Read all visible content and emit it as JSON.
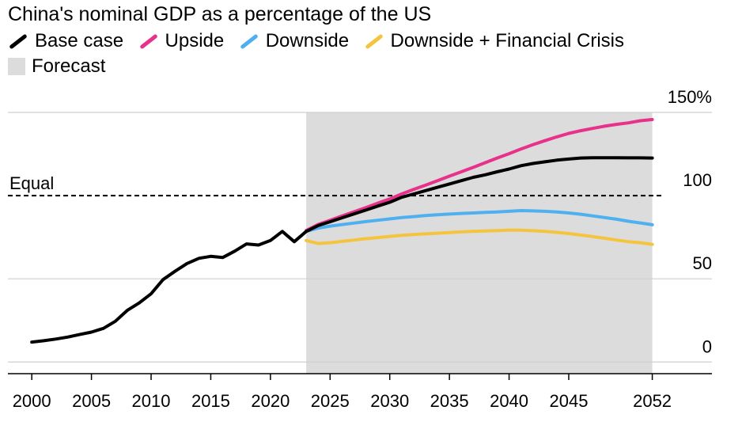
{
  "chart_data": {
    "type": "line",
    "title": "China's nominal GDP as a percentage of the US",
    "xlabel": "",
    "ylabel": "",
    "xlim": [
      1998,
      2057
    ],
    "ylim": [
      -7,
      150
    ],
    "x_ticks": [
      {
        "value": 2000,
        "label": "2000"
      },
      {
        "value": 2005,
        "label": "2005"
      },
      {
        "value": 2010,
        "label": "2010"
      },
      {
        "value": 2015,
        "label": "2015"
      },
      {
        "value": 2020,
        "label": "2020"
      },
      {
        "value": 2025,
        "label": "2025"
      },
      {
        "value": 2030,
        "label": "2030"
      },
      {
        "value": 2035,
        "label": "2035"
      },
      {
        "value": 2040,
        "label": "2040"
      },
      {
        "value": 2045,
        "label": "2045"
      },
      {
        "value": 2052,
        "label": "2052"
      }
    ],
    "y_ticks": [
      {
        "value": 150,
        "label": "150%"
      },
      {
        "value": 100,
        "label": "100"
      },
      {
        "value": 50,
        "label": "50"
      },
      {
        "value": 0,
        "label": "0"
      }
    ],
    "grid": true,
    "legend_position": "top-left",
    "forecast": {
      "label": "Forecast",
      "from": 2023,
      "to": 2052,
      "color": "#dcdcdc"
    },
    "reference_line": {
      "value": 100,
      "label": "Equal",
      "style": "dashed"
    },
    "series": [
      {
        "name": "Base case",
        "color": "#000000",
        "x": [
          2000,
          2001,
          2002,
          2003,
          2004,
          2005,
          2006,
          2007,
          2008,
          2009,
          2010,
          2011,
          2012,
          2013,
          2014,
          2015,
          2016,
          2017,
          2018,
          2019,
          2020,
          2021,
          2022,
          2023,
          2024,
          2025,
          2026,
          2027,
          2028,
          2029,
          2030,
          2031,
          2032,
          2033,
          2034,
          2035,
          2036,
          2037,
          2038,
          2039,
          2040,
          2041,
          2042,
          2043,
          2044,
          2045,
          2046,
          2047,
          2048,
          2049,
          2050,
          2051,
          2052
        ],
        "y": [
          12,
          12.8,
          13.8,
          15,
          16.5,
          18,
          20.2,
          24.5,
          31,
          35.5,
          41,
          49.5,
          54.5,
          59.2,
          62.3,
          63.5,
          62.8,
          66.6,
          71,
          70.3,
          73,
          78.5,
          72.3,
          78.5,
          82,
          84.3,
          86.7,
          89,
          91.3,
          93.7,
          96,
          99,
          101,
          103,
          105,
          107,
          109,
          111,
          112.5,
          114.3,
          116,
          118,
          119.3,
          120.3,
          121.3,
          122,
          122.6,
          122.8,
          122.8,
          122.8,
          122.7,
          122.7,
          122.6
        ]
      },
      {
        "name": "Upside",
        "color": "#e8318a",
        "x": [
          2023,
          2024,
          2025,
          2026,
          2027,
          2028,
          2029,
          2030,
          2031,
          2032,
          2033,
          2034,
          2035,
          2036,
          2037,
          2038,
          2039,
          2040,
          2041,
          2042,
          2043,
          2044,
          2045,
          2046,
          2047,
          2048,
          2049,
          2050,
          2051,
          2052
        ],
        "y": [
          79,
          82.7,
          85.2,
          87.8,
          90.3,
          92.8,
          95.5,
          98,
          101,
          103.7,
          106.3,
          109,
          111.7,
          114.3,
          117,
          119.8,
          122.6,
          125.2,
          128,
          130.6,
          133,
          135.3,
          137.4,
          139,
          140.4,
          141.7,
          142.8,
          143.7,
          145,
          145.7
        ]
      },
      {
        "name": "Downside",
        "color": "#4fb0f0",
        "x": [
          2023,
          2024,
          2025,
          2026,
          2027,
          2028,
          2029,
          2030,
          2031,
          2032,
          2033,
          2034,
          2035,
          2036,
          2037,
          2038,
          2039,
          2040,
          2041,
          2042,
          2043,
          2044,
          2045,
          2046,
          2047,
          2048,
          2049,
          2050,
          2051,
          2052
        ],
        "y": [
          78.5,
          80.5,
          81.7,
          82.6,
          83.5,
          84.4,
          85.2,
          86,
          86.8,
          87.4,
          88,
          88.5,
          88.9,
          89.3,
          89.6,
          89.9,
          90.2,
          90.6,
          91,
          90.8,
          90.6,
          90.2,
          89.6,
          88.8,
          87.8,
          86.8,
          85.8,
          84.6,
          83.6,
          82.5
        ]
      },
      {
        "name": "Downside + Financial Crisis",
        "color": "#f5c43f",
        "x": [
          2023,
          2024,
          2025,
          2026,
          2027,
          2028,
          2029,
          2030,
          2031,
          2032,
          2033,
          2034,
          2035,
          2036,
          2037,
          2038,
          2039,
          2040,
          2041,
          2042,
          2043,
          2044,
          2045,
          2046,
          2047,
          2048,
          2049,
          2050,
          2051,
          2052
        ],
        "y": [
          73,
          71.2,
          71.7,
          72.5,
          73.3,
          74.1,
          74.8,
          75.5,
          76.1,
          76.6,
          77,
          77.4,
          77.8,
          78.2,
          78.5,
          78.8,
          79,
          79.2,
          79.2,
          78.9,
          78.5,
          77.9,
          77.2,
          76.3,
          75.4,
          74.4,
          73.3,
          72.3,
          71.7,
          70.7
        ]
      }
    ]
  }
}
